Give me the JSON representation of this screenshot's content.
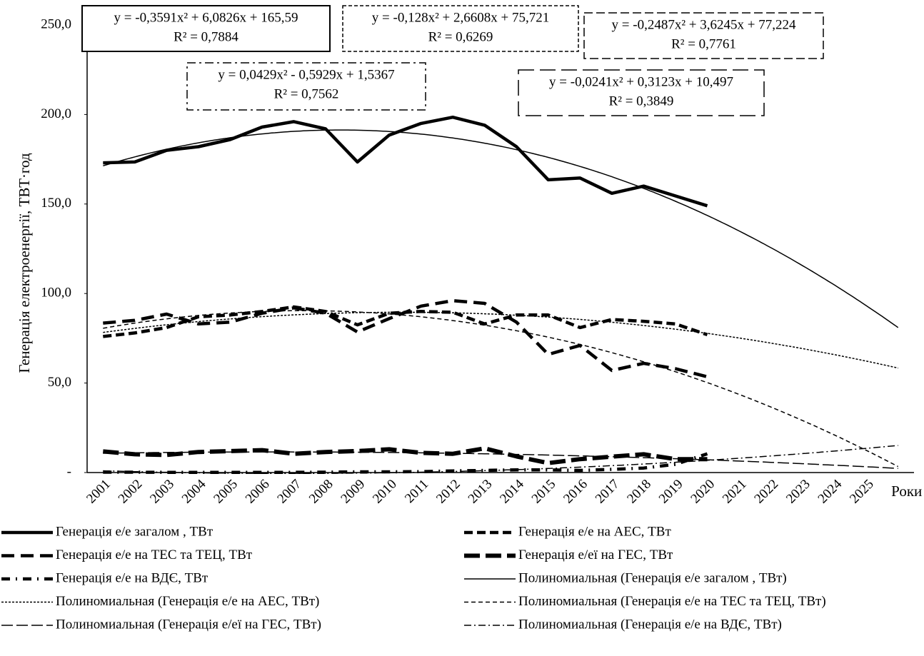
{
  "chart_data": {
    "type": "line",
    "ylabel": "Генерація електроенергії, ТВТ·год",
    "xlabel": "Роки",
    "categories": [
      "2001",
      "2002",
      "2003",
      "2004",
      "2005",
      "2006",
      "2007",
      "2008",
      "2009",
      "2010",
      "2011",
      "2012",
      "2013",
      "2014",
      "2015",
      "2016",
      "2017",
      "2018",
      "2019",
      "2020",
      "2021",
      "2022",
      "2023",
      "2024",
      "2025",
      null
    ],
    "ylim": [
      0,
      250
    ],
    "yticks": [
      {
        "value": 0,
        "label": "-"
      },
      {
        "value": 50,
        "label": "50,0"
      },
      {
        "value": 100,
        "label": "100,0"
      },
      {
        "value": 150,
        "label": "150,0"
      },
      {
        "value": 200,
        "label": "200,0"
      },
      {
        "value": 250,
        "label": "250,0"
      }
    ],
    "series": [
      {
        "name": "Генерація е/е загалом , ТВт",
        "color": "#000000",
        "values": [
          173,
          173.5,
          180,
          182,
          186,
          193,
          196,
          192,
          173.5,
          188.5,
          195,
          198.5,
          194,
          182,
          163.5,
          164.5,
          156,
          160,
          154.5,
          149,
          null,
          null,
          null,
          null,
          null,
          null
        ]
      },
      {
        "name": "Генерація е/е на АЕС, ТВт",
        "color": "#000000",
        "values": [
          76,
          78,
          81,
          87,
          88,
          90,
          92.5,
          90,
          82.5,
          89,
          90,
          89.5,
          83,
          88,
          88,
          81,
          85.5,
          84.5,
          83,
          77,
          null,
          null,
          null,
          null,
          null,
          null
        ]
      },
      {
        "name": "Генерація е/е на ТЕС та ТЕЦ, ТВт",
        "color": "#000000",
        "values": [
          83.5,
          85,
          88.5,
          83,
          84,
          89,
          92,
          89,
          78.5,
          86,
          93,
          96,
          94.5,
          84,
          66,
          71,
          57,
          61,
          58,
          53.5,
          null,
          null,
          null,
          null,
          null,
          null
        ]
      },
      {
        "name": "Генерація е/еї на ГЕС, ТВт",
        "color": "#000000",
        "values": [
          11.8,
          10.2,
          9.8,
          11.5,
          12,
          12.5,
          10.5,
          11.5,
          12,
          13,
          11,
          10.5,
          13.5,
          9,
          5.3,
          7.5,
          8.9,
          10.2,
          7.5,
          7.5,
          null,
          null,
          null,
          null,
          null,
          null
        ]
      },
      {
        "name": "Генерація е/е на ВДЄ, ТВт",
        "color": "#000000",
        "values": [
          0.2,
          0.2,
          0.1,
          0.1,
          0.1,
          0.1,
          0.1,
          0.2,
          0.4,
          0.4,
          0.5,
          0.9,
          1.2,
          1.5,
          1.5,
          1.2,
          1.8,
          2.5,
          4.6,
          10.5,
          null,
          null,
          null,
          null,
          null,
          null
        ]
      }
    ],
    "trendlines": [
      {
        "name": "Полиномиальная (Генерація е/е загалом , ТВт)",
        "equation": "y = -0,3591x² + 6,0826x + 165,59",
        "r2": "R² = 0,7884",
        "coefficients": [
          -0.3591,
          6.0826,
          165.59
        ]
      },
      {
        "name": "Полиномиальная (Генерація е/е на АЕС, ТВт)",
        "equation": "y = -0,128x² + 2,6608x + 75,721",
        "r2": "R² = 0,6269",
        "coefficients": [
          -0.128,
          2.6608,
          75.721
        ]
      },
      {
        "name": "Полиномиальная (Генерація е/е на ТЕС та ТЕЦ, ТВт)",
        "equation": "y = -0,2487x² + 3,6245x + 77,224",
        "r2": "R² = 0,7761",
        "coefficients": [
          -0.2487,
          3.6245,
          77.224
        ]
      },
      {
        "name": "Полиномиальная (Генерація е/еї на ГЕС, ТВт)",
        "equation": "y = -0,0241x² + 0,3123x + 10,497",
        "r2": "R² = 0,3849",
        "coefficients": [
          -0.0241,
          0.3123,
          10.497
        ]
      },
      {
        "name": "Полиномиальная (Генерація е/е на ВДЄ, ТВт)",
        "equation": "y = 0,0429x² - 0,5929x + 1,5367",
        "r2": "R² = 0,7562",
        "coefficients": [
          0.0429,
          -0.5929,
          1.5367
        ]
      }
    ]
  }
}
